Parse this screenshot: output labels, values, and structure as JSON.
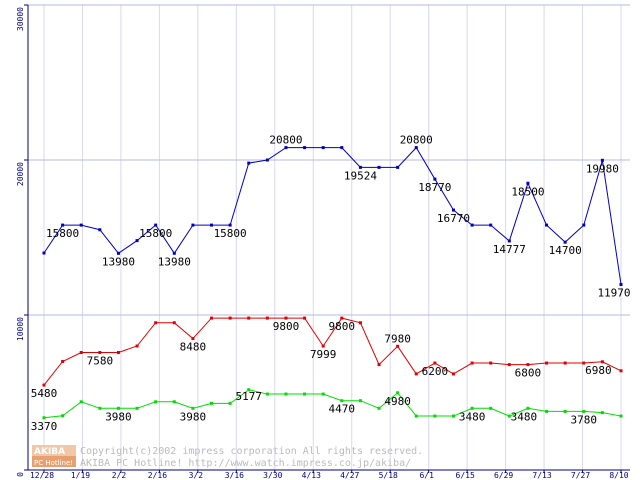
{
  "chart_data": {
    "type": "line",
    "title": "",
    "xlabel": "",
    "ylabel": "",
    "ylim": [
      0,
      30000
    ],
    "yticks": [
      "0",
      "10000",
      "20000",
      "30000"
    ],
    "grid": "vertical",
    "xticks": [
      "12/28",
      "1/19",
      "2/2",
      "2/16",
      "3/2",
      "3/16",
      "3/30",
      "4/13",
      "4/27",
      "5/18",
      "6/1",
      "6/15",
      "6/29",
      "7/13",
      "7/27",
      "8/10"
    ],
    "series": [
      {
        "color": "#0000c0",
        "values": [
          14000,
          15800,
          15800,
          15500,
          13980,
          14800,
          15800,
          13980,
          15800,
          15800,
          15800,
          19800,
          20000,
          20800,
          20800,
          20800,
          20800,
          19524,
          19524,
          19524,
          20800,
          18770,
          16770,
          15800,
          15800,
          14777,
          18500,
          15800,
          14700,
          15800,
          19980,
          11970
        ],
        "labels": [
          "15800",
          "13980",
          "15800",
          "13980",
          "15800",
          "20800",
          "19524",
          "20800",
          "18770",
          "16770",
          "14777",
          "18500",
          "14700",
          "19980",
          "11970"
        ]
      },
      {
        "color": "#e00000",
        "values": [
          5480,
          7000,
          7580,
          7580,
          7580,
          8000,
          9500,
          9500,
          8480,
          9800,
          9800,
          9800,
          9800,
          9800,
          9800,
          7999,
          9800,
          9500,
          6800,
          7980,
          6200,
          6900,
          6200,
          6900,
          6900,
          6800,
          6800,
          6900,
          6900,
          6900,
          6980,
          6400
        ],
        "labels": [
          "5480",
          "7580",
          "8480",
          "9800",
          "7999",
          "9800",
          "7980",
          "6200",
          "6800",
          "6980"
        ]
      },
      {
        "color": "#00dd00",
        "values": [
          3370,
          3500,
          4400,
          3980,
          3980,
          3980,
          4400,
          4400,
          3980,
          4300,
          4300,
          5177,
          4900,
          4900,
          4900,
          4900,
          4470,
          4470,
          3980,
          4980,
          3480,
          3480,
          3480,
          3980,
          3980,
          3480,
          3980,
          3780,
          3780,
          3780,
          3700,
          3480
        ],
        "labels": [
          "3370",
          "3980",
          "3980",
          "5177",
          "4470",
          "4980",
          "3480",
          "3480",
          "3780"
        ]
      }
    ]
  },
  "copyright": {
    "badge_top": "AKIBA",
    "badge_bottom": "PC Hotline!",
    "line1": "Copyright(c)2002 impress corporation All rights reserved.",
    "line2": "AKIBA PC Hotline!  http://www.watch.impress.co.jp/akiba/"
  }
}
